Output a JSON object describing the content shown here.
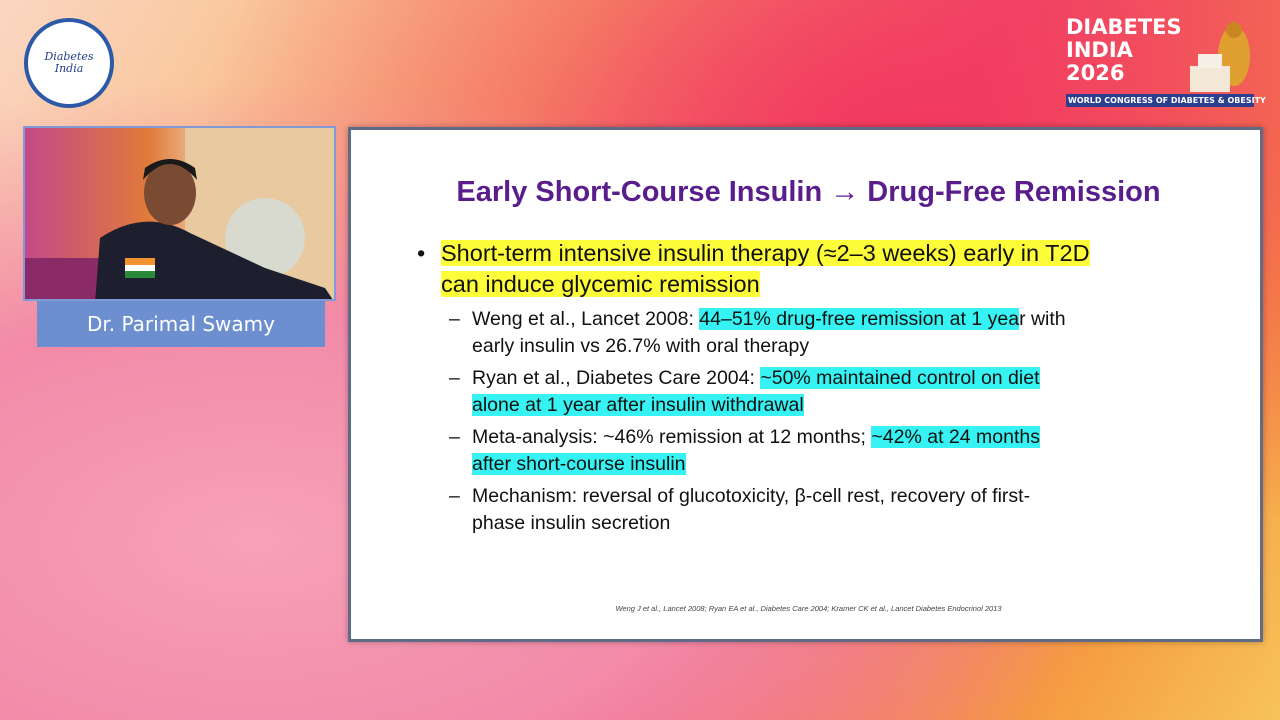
{
  "header": {
    "logo_text": "Diabetes India",
    "event": {
      "line1": "DIABETES",
      "line2": "INDIA",
      "year": "2026",
      "tagline": "WORLD CONGRESS OF DIABETES & OBESITY"
    }
  },
  "speaker": {
    "name": "Dr. Parimal Swamy"
  },
  "slide": {
    "title": "Early Short-Course Insulin → Drug-Free Remission",
    "bullets": [
      {
        "segments": [
          {
            "text": "Short-term intensive insulin therapy (≈2–3 weeks) early in T2D can induce glycemic remission",
            "highlight": "#fdfd3a"
          }
        ],
        "sub_bullets": [
          {
            "segments": [
              {
                "text": "Weng et al., Lancet 2008: "
              },
              {
                "text": "44–51% drug-free remission at 1 yea",
                "highlight": "#36f2f2"
              },
              {
                "text": "r with early insulin vs 26.7% with oral therapy"
              }
            ]
          },
          {
            "segments": [
              {
                "text": "Ryan et al., Diabetes Care 2004: "
              },
              {
                "text": "~50% maintained control on diet alone at 1 year after insulin withdrawal",
                "highlight": "#36f2f2"
              }
            ]
          },
          {
            "segments": [
              {
                "text": "Meta-analysis: ~46% remission at 12 months; "
              },
              {
                "text": "~42% at 24 months after short-course insulin",
                "highlight": "#36f2f2"
              }
            ]
          },
          {
            "segments": [
              {
                "text": "Mechanism: reversal of glucotoxicity, β-cell rest, recovery of first-phase insulin secretion"
              }
            ]
          }
        ]
      }
    ],
    "footnote": "Weng J et al., Lancet 2008; Ryan EA et al., Diabetes Care 2004; Kramer CK et al., Lancet Diabetes Endocrinol 2013"
  }
}
